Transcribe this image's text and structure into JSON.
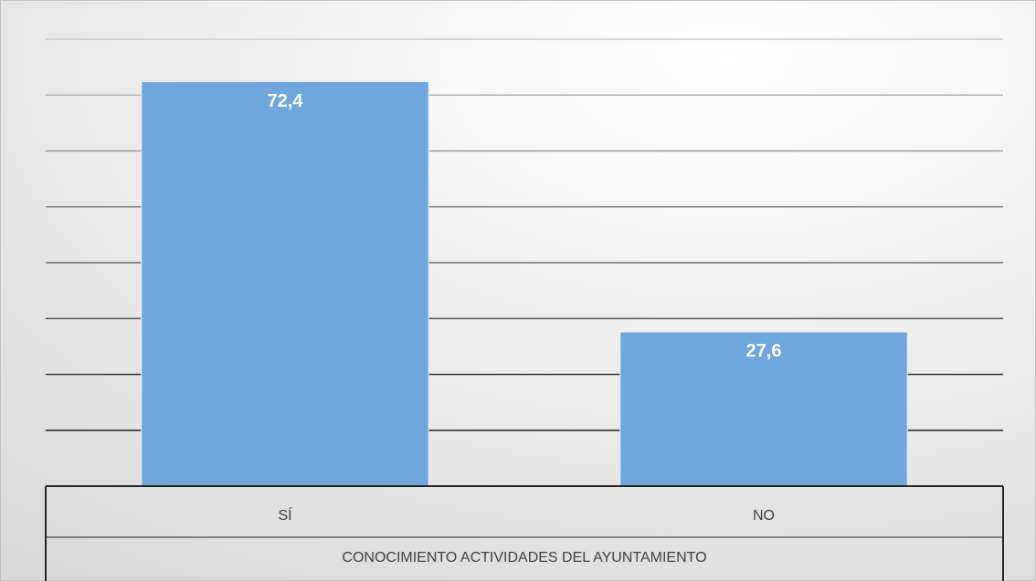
{
  "chart_data": {
    "type": "bar",
    "categories": [
      "SÍ",
      "NO"
    ],
    "values": [
      72.4,
      27.6
    ],
    "value_labels": [
      "72,4",
      "27,6"
    ],
    "xlabel": "CONOCIMIENTO ACTIVIDADES DEL AYUNTAMIENTO",
    "color": "#6fa6db",
    "ylim": [
      0,
      80
    ],
    "yticks": [
      0,
      10,
      20,
      30,
      40,
      50,
      60,
      70,
      80
    ],
    "grid": true
  }
}
